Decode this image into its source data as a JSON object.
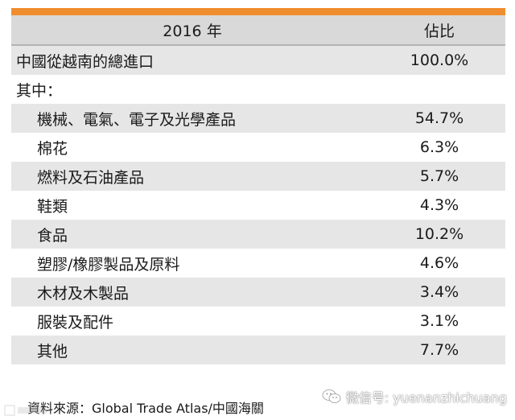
{
  "table": {
    "header": {
      "year": "2016 年",
      "share": "佔比"
    },
    "rows": [
      {
        "label": "中國從越南的總進口",
        "value": "100.0%"
      },
      {
        "label": "其中：",
        "value": ""
      },
      {
        "label": "機械、電氣、電子及光學產品",
        "value": "54.7%"
      },
      {
        "label": "棉花",
        "value": "6.3%"
      },
      {
        "label": "燃料及石油產品",
        "value": "5.7%"
      },
      {
        "label": "鞋類",
        "value": "4.3%"
      },
      {
        "label": "食品",
        "value": "10.2%"
      },
      {
        "label": "塑膠/橡膠製品及原料",
        "value": "4.6%"
      },
      {
        "label": "木材及木製品",
        "value": "3.4%"
      },
      {
        "label": "服裝及配件",
        "value": "3.1%"
      },
      {
        "label": "其他",
        "value": "7.7%"
      }
    ]
  },
  "footer": {
    "source": "資料來源：Global Trade Atlas/中國海關",
    "watermark": "微信号: yuenanzhichuang",
    "watermark_icon": "wechat-icon"
  },
  "colors": {
    "accent_bar": "#f08d2e",
    "header_bg": "#d9d9d9",
    "row_shade": "#e6e6e6"
  }
}
